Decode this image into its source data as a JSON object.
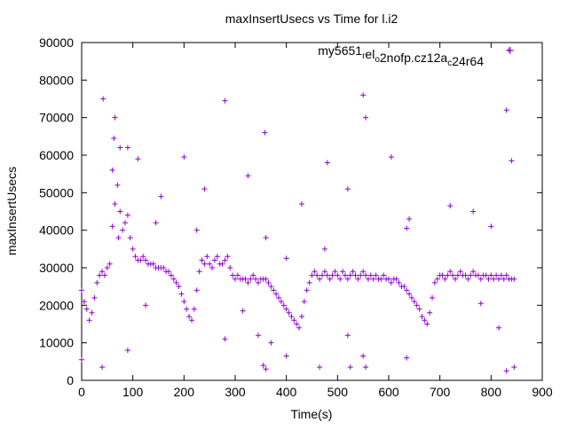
{
  "chart_data": {
    "type": "scatter",
    "title": "maxInsertUsecs vs Time for l.i2",
    "xlabel": "Time(s)",
    "ylabel": "maxInsertUsecs",
    "xlim": [
      0,
      900
    ],
    "ylim": [
      0,
      90000
    ],
    "xticks": [
      0,
      100,
      200,
      300,
      400,
      500,
      600,
      700,
      800,
      900
    ],
    "yticks": [
      0,
      10000,
      20000,
      30000,
      40000,
      50000,
      60000,
      70000,
      80000,
      90000
    ],
    "grid": false,
    "legend_position": "top-right",
    "series": [
      {
        "name": "my5651_rel_o2nofp.cz12a_c24r64",
        "legend_parts": [
          {
            "t": "my5651",
            "sub": false
          },
          {
            "t": "r",
            "sub": true
          },
          {
            "t": "el",
            "sub": false
          },
          {
            "t": "o",
            "sub": true
          },
          {
            "t": "2nofp.cz12a",
            "sub": false
          },
          {
            "t": "c",
            "sub": true
          },
          {
            "t": "24r64",
            "sub": false
          }
        ],
        "color": "#9400d3",
        "marker": "+",
        "points": [
          [
            0,
            24000
          ],
          [
            5,
            21000
          ],
          [
            10,
            19000
          ],
          [
            15,
            16000
          ],
          [
            20,
            18000
          ],
          [
            25,
            22000
          ],
          [
            30,
            26000
          ],
          [
            35,
            28000
          ],
          [
            40,
            29000
          ],
          [
            45,
            28000
          ],
          [
            50,
            30000
          ],
          [
            55,
            31000
          ],
          [
            60,
            41000
          ],
          [
            65,
            47000
          ],
          [
            70,
            52000
          ],
          [
            72,
            38000
          ],
          [
            75,
            45000
          ],
          [
            80,
            40000
          ],
          [
            85,
            42000
          ],
          [
            90,
            44000
          ],
          [
            95,
            38000
          ],
          [
            100,
            35000
          ],
          [
            105,
            33000
          ],
          [
            110,
            32000
          ],
          [
            115,
            32000
          ],
          [
            120,
            33000
          ],
          [
            125,
            32000
          ],
          [
            130,
            31000
          ],
          [
            135,
            31000
          ],
          [
            140,
            31000
          ],
          [
            145,
            30000
          ],
          [
            150,
            30000
          ],
          [
            155,
            30000
          ],
          [
            160,
            30000
          ],
          [
            165,
            29000
          ],
          [
            170,
            29000
          ],
          [
            175,
            28000
          ],
          [
            180,
            27000
          ],
          [
            185,
            26000
          ],
          [
            190,
            25000
          ],
          [
            195,
            23000
          ],
          [
            200,
            21000
          ],
          [
            205,
            19000
          ],
          [
            210,
            17000
          ],
          [
            215,
            16000
          ],
          [
            220,
            19000
          ],
          [
            225,
            24000
          ],
          [
            230,
            29000
          ],
          [
            235,
            32000
          ],
          [
            240,
            31000
          ],
          [
            245,
            33000
          ],
          [
            250,
            31000
          ],
          [
            255,
            30000
          ],
          [
            260,
            32000
          ],
          [
            265,
            33000
          ],
          [
            270,
            31000
          ],
          [
            275,
            31000
          ],
          [
            280,
            32000
          ],
          [
            285,
            33000
          ],
          [
            290,
            30000
          ],
          [
            295,
            28000
          ],
          [
            300,
            27000
          ],
          [
            305,
            28000
          ],
          [
            310,
            27000
          ],
          [
            315,
            27000
          ],
          [
            320,
            27000
          ],
          [
            325,
            26000
          ],
          [
            330,
            27000
          ],
          [
            335,
            28000
          ],
          [
            340,
            27000
          ],
          [
            345,
            26000
          ],
          [
            350,
            27000
          ],
          [
            355,
            27000
          ],
          [
            360,
            27000
          ],
          [
            365,
            26000
          ],
          [
            370,
            25000
          ],
          [
            375,
            24000
          ],
          [
            380,
            23000
          ],
          [
            385,
            22000
          ],
          [
            390,
            21000
          ],
          [
            395,
            20000
          ],
          [
            400,
            19000
          ],
          [
            405,
            18000
          ],
          [
            410,
            17000
          ],
          [
            415,
            16000
          ],
          [
            420,
            15000
          ],
          [
            425,
            14000
          ],
          [
            430,
            17000
          ],
          [
            435,
            21000
          ],
          [
            440,
            24000
          ],
          [
            445,
            26000
          ],
          [
            450,
            28000
          ],
          [
            455,
            29000
          ],
          [
            460,
            28000
          ],
          [
            465,
            27000
          ],
          [
            470,
            28000
          ],
          [
            475,
            29000
          ],
          [
            480,
            28000
          ],
          [
            485,
            27000
          ],
          [
            490,
            28000
          ],
          [
            495,
            29000
          ],
          [
            500,
            28000
          ],
          [
            505,
            27000
          ],
          [
            510,
            29000
          ],
          [
            515,
            28000
          ],
          [
            520,
            27000
          ],
          [
            525,
            28000
          ],
          [
            530,
            29000
          ],
          [
            535,
            28000
          ],
          [
            540,
            27000
          ],
          [
            545,
            28000
          ],
          [
            550,
            29000
          ],
          [
            555,
            28000
          ],
          [
            560,
            27000
          ],
          [
            565,
            28000
          ],
          [
            570,
            27000
          ],
          [
            575,
            28000
          ],
          [
            580,
            27000
          ],
          [
            585,
            27000
          ],
          [
            590,
            28000
          ],
          [
            595,
            27000
          ],
          [
            600,
            27000
          ],
          [
            605,
            26000
          ],
          [
            610,
            27000
          ],
          [
            615,
            27000
          ],
          [
            620,
            26000
          ],
          [
            625,
            25000
          ],
          [
            630,
            25000
          ],
          [
            635,
            24000
          ],
          [
            640,
            23000
          ],
          [
            645,
            22000
          ],
          [
            650,
            21000
          ],
          [
            655,
            20000
          ],
          [
            660,
            19000
          ],
          [
            665,
            17000
          ],
          [
            670,
            16000
          ],
          [
            675,
            15000
          ],
          [
            680,
            18000
          ],
          [
            685,
            22000
          ],
          [
            690,
            26000
          ],
          [
            695,
            27000
          ],
          [
            700,
            28000
          ],
          [
            705,
            28000
          ],
          [
            710,
            27000
          ],
          [
            715,
            28000
          ],
          [
            720,
            29000
          ],
          [
            725,
            28000
          ],
          [
            730,
            27000
          ],
          [
            735,
            28000
          ],
          [
            740,
            29000
          ],
          [
            745,
            28000
          ],
          [
            750,
            28000
          ],
          [
            755,
            27000
          ],
          [
            760,
            28000
          ],
          [
            765,
            29000
          ],
          [
            770,
            28000
          ],
          [
            775,
            28000
          ],
          [
            780,
            27000
          ],
          [
            785,
            28000
          ],
          [
            790,
            28000
          ],
          [
            795,
            27000
          ],
          [
            800,
            28000
          ],
          [
            805,
            27000
          ],
          [
            810,
            28000
          ],
          [
            815,
            27000
          ],
          [
            820,
            28000
          ],
          [
            825,
            27000
          ],
          [
            830,
            28000
          ],
          [
            835,
            27000
          ],
          [
            840,
            27000
          ],
          [
            845,
            27000
          ],
          [
            0,
            5500
          ],
          [
            40,
            3500
          ],
          [
            42,
            75000
          ],
          [
            65,
            70000
          ],
          [
            63,
            64500
          ],
          [
            60,
            56000
          ],
          [
            75,
            62000
          ],
          [
            90,
            62000
          ],
          [
            90,
            8000
          ],
          [
            110,
            59000
          ],
          [
            125,
            20000
          ],
          [
            145,
            42000
          ],
          [
            155,
            49000
          ],
          [
            200,
            59500
          ],
          [
            225,
            40000
          ],
          [
            240,
            51000
          ],
          [
            280,
            74500
          ],
          [
            280,
            11000
          ],
          [
            315,
            18500
          ],
          [
            325,
            54500
          ],
          [
            345,
            12000
          ],
          [
            358,
            66000
          ],
          [
            355,
            4000
          ],
          [
            360,
            3000
          ],
          [
            360,
            38000
          ],
          [
            370,
            10000
          ],
          [
            400,
            32500
          ],
          [
            400,
            6500
          ],
          [
            430,
            47000
          ],
          [
            465,
            3500
          ],
          [
            475,
            35000
          ],
          [
            480,
            58000
          ],
          [
            520,
            51000
          ],
          [
            520,
            12000
          ],
          [
            525,
            3500
          ],
          [
            550,
            76000
          ],
          [
            550,
            6500
          ],
          [
            555,
            70000
          ],
          [
            555,
            3500
          ],
          [
            605,
            59500
          ],
          [
            635,
            6000
          ],
          [
            635,
            40500
          ],
          [
            640,
            43000
          ],
          [
            720,
            46500
          ],
          [
            765,
            45000
          ],
          [
            780,
            20500
          ],
          [
            800,
            41000
          ],
          [
            815,
            14000
          ],
          [
            830,
            72000
          ],
          [
            830,
            2500
          ],
          [
            835,
            88000
          ],
          [
            840,
            58500
          ],
          [
            845,
            3500
          ]
        ]
      }
    ]
  }
}
